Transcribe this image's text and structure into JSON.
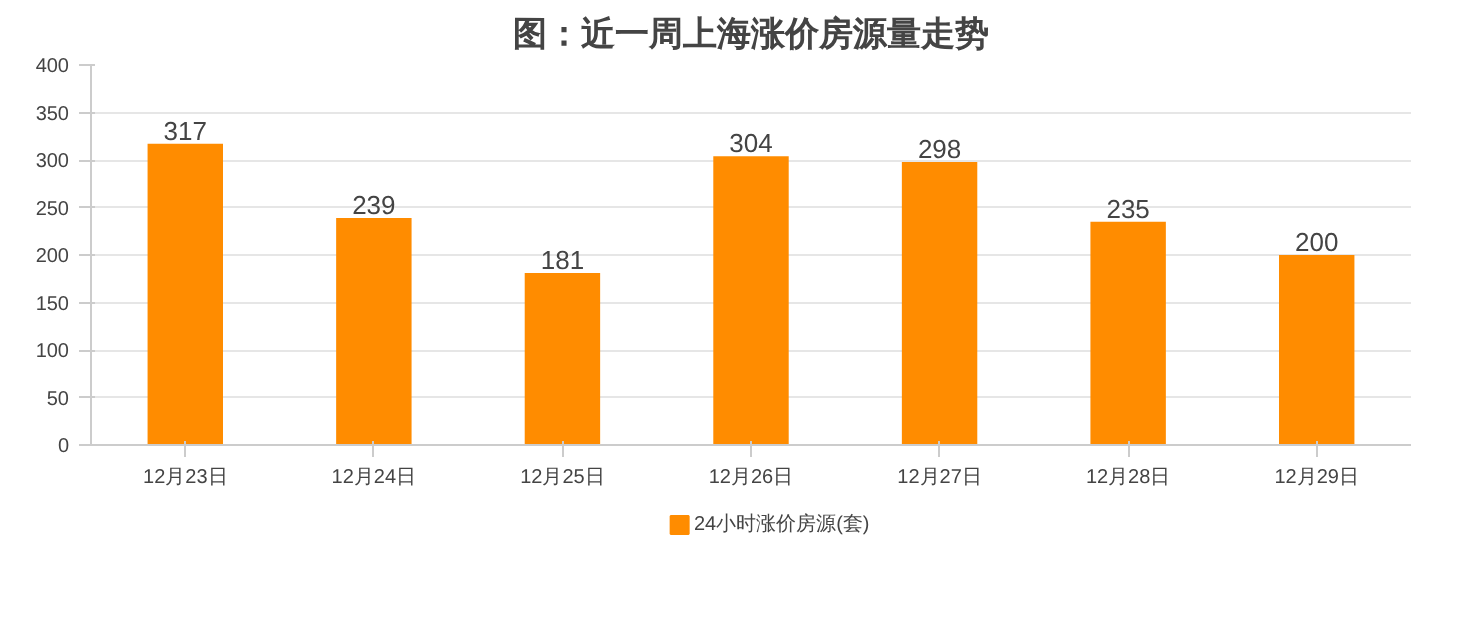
{
  "chart_data": {
    "type": "bar",
    "title": "图：近一周上海涨价房源量走势",
    "categories": [
      "12月23日",
      "12月24日",
      "12月25日",
      "12月26日",
      "12月27日",
      "12月28日",
      "12月29日"
    ],
    "series": [
      {
        "name": "24小时涨价房源(套)",
        "color": "#ff8c00",
        "values": [
          317,
          239,
          181,
          304,
          298,
          235,
          200
        ]
      }
    ],
    "ylim": [
      0,
      400
    ],
    "yticks": [
      0,
      50,
      100,
      150,
      200,
      250,
      300,
      350,
      400
    ],
    "grid": "y",
    "legend": "bottom",
    "data_labels": true
  }
}
